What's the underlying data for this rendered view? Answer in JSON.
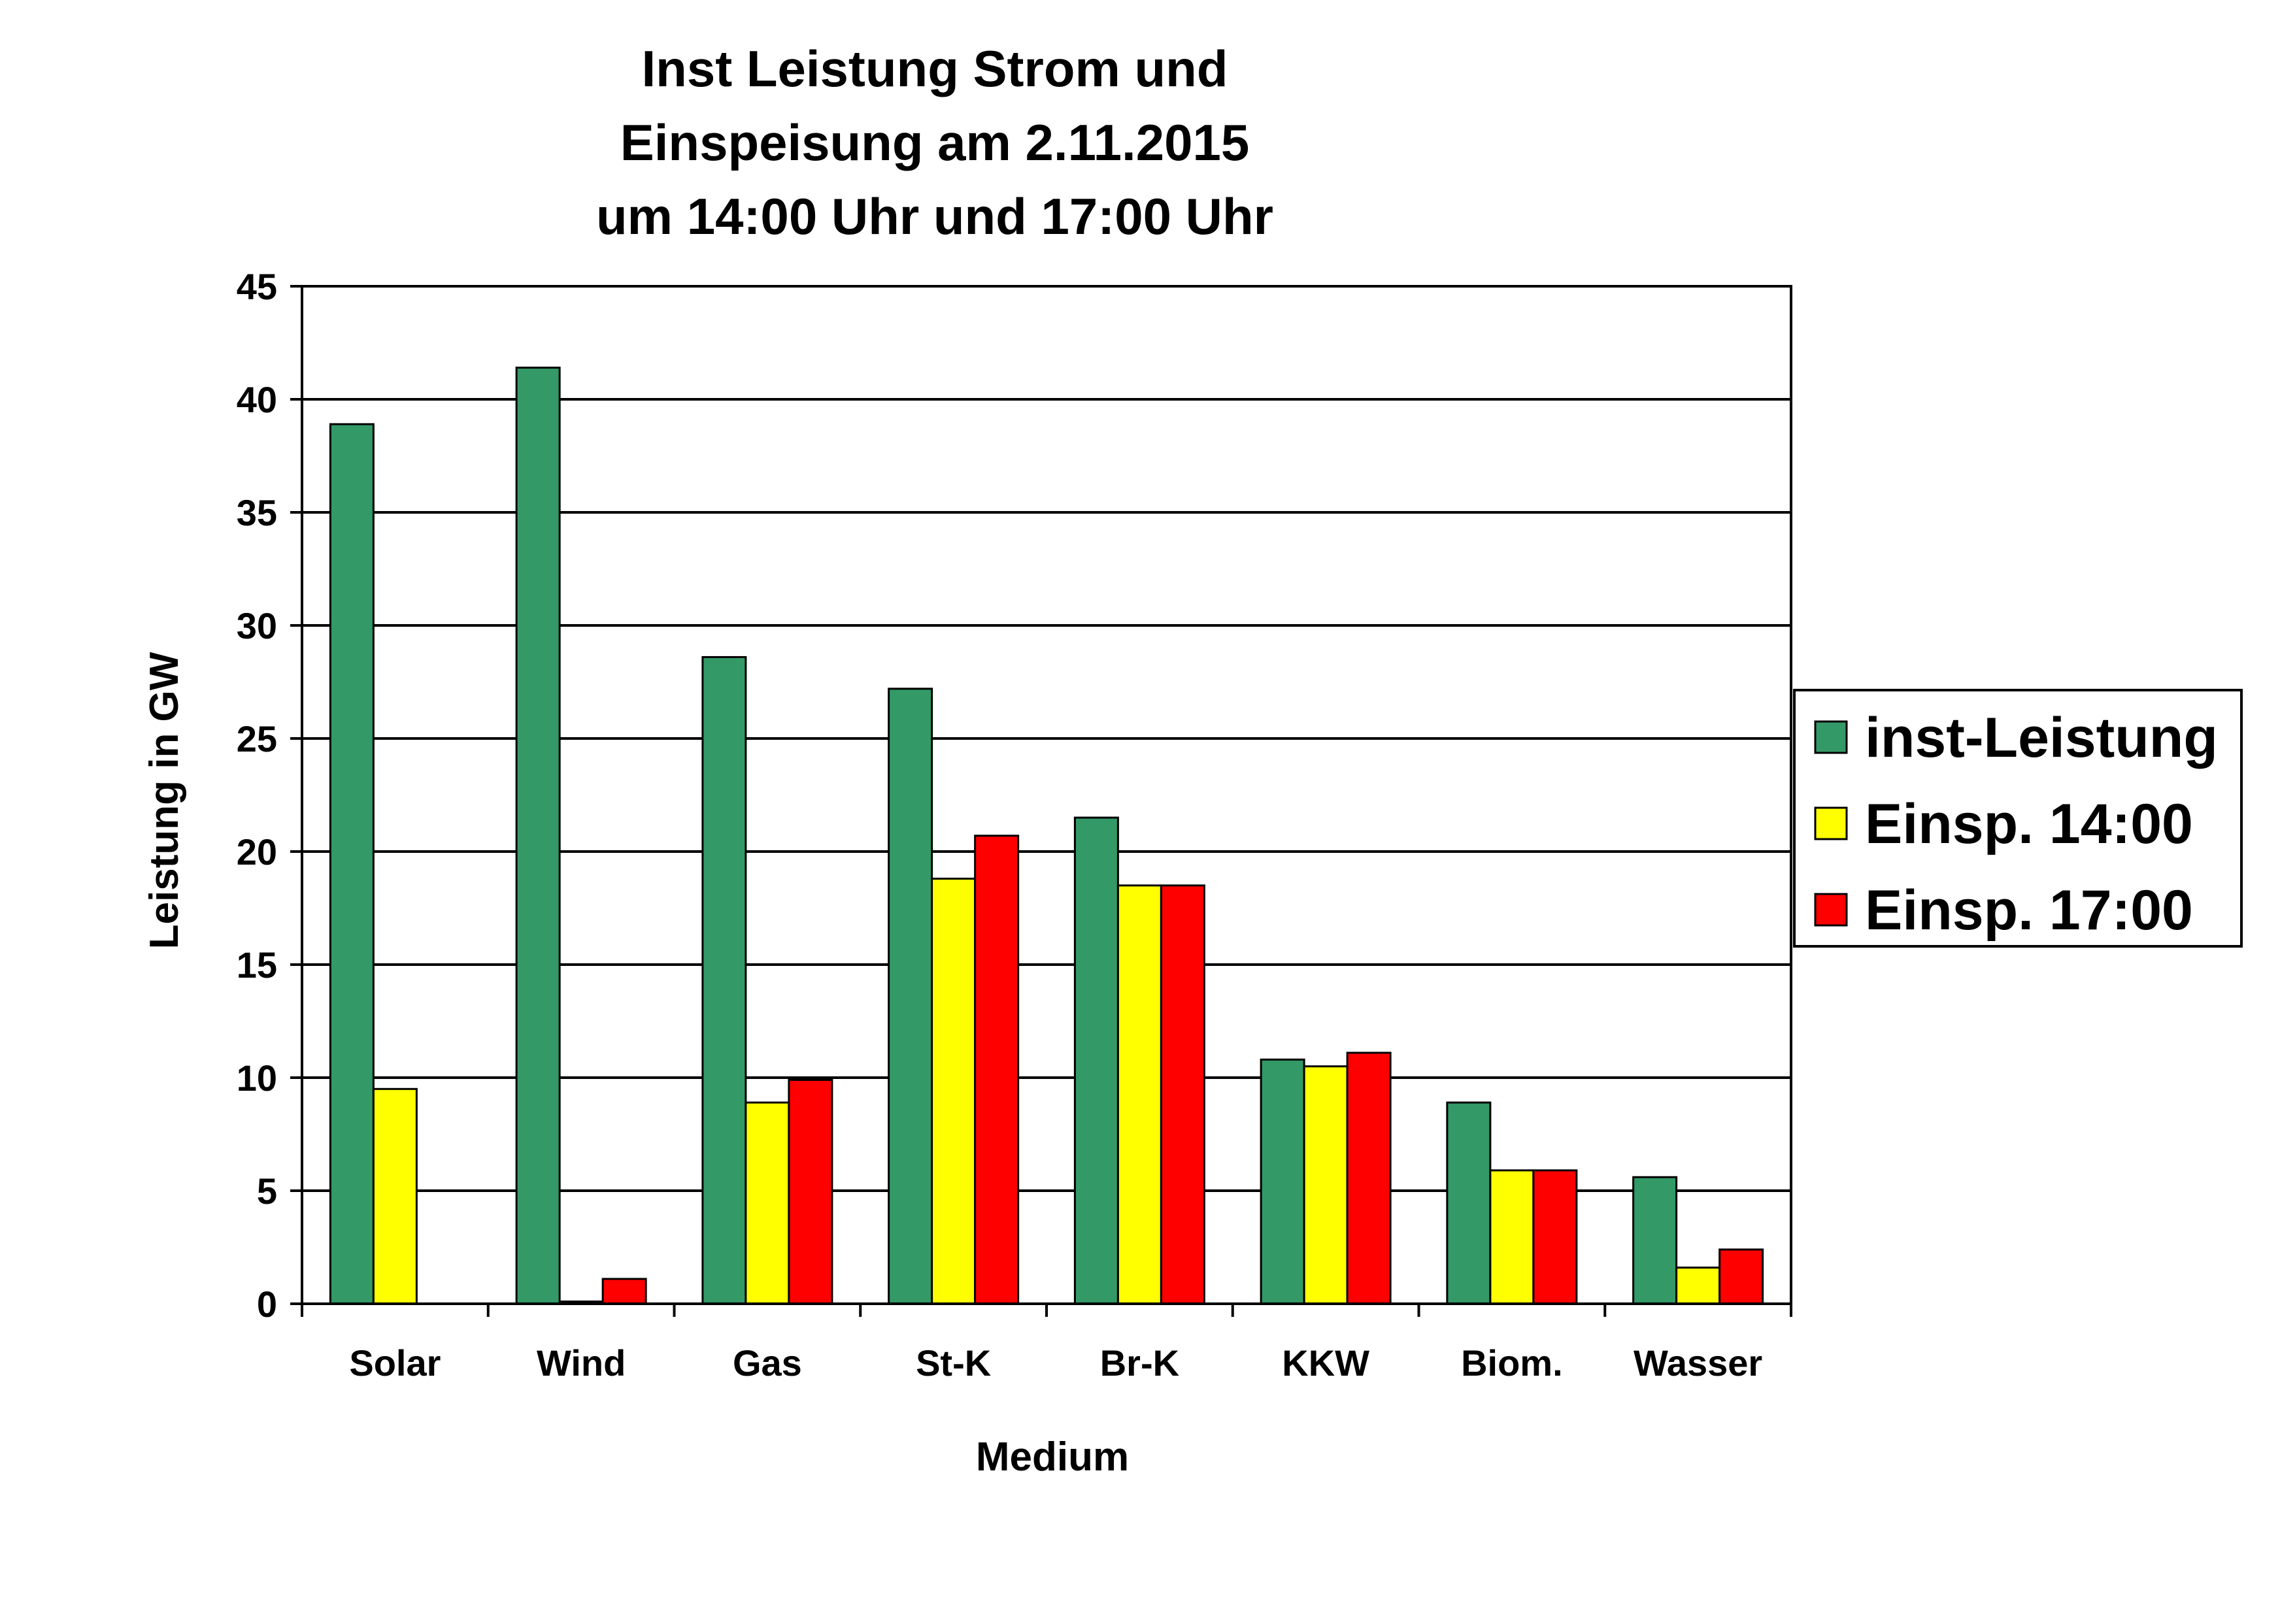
{
  "chart_data": {
    "type": "bar",
    "title_lines": [
      "Inst Leistung Strom und",
      "Einspeisung am 2.11.2015",
      "um 14:00 Uhr und 17:00 Uhr"
    ],
    "xlabel": "Medium",
    "ylabel": "Leistung in GW",
    "ylim": [
      0,
      45
    ],
    "yticks": [
      0,
      5,
      10,
      15,
      20,
      25,
      30,
      35,
      40,
      45
    ],
    "grid": true,
    "legend_position": "right",
    "categories": [
      "Solar",
      "Wind",
      "Gas",
      "St-K",
      "Br-K",
      "KKW",
      "Biom.",
      "Wasser"
    ],
    "series": [
      {
        "name": "inst-Leistung",
        "color": "#339966",
        "values": [
          38.9,
          41.4,
          28.6,
          27.2,
          21.5,
          10.8,
          8.9,
          5.6
        ]
      },
      {
        "name": "Einsp. 14:00",
        "color": "#ffff00",
        "values": [
          9.5,
          0.1,
          8.9,
          18.8,
          18.5,
          10.5,
          5.9,
          1.6
        ]
      },
      {
        "name": "Einsp. 17:00",
        "color": "#ff0000",
        "values": [
          0,
          1.1,
          9.9,
          20.7,
          18.5,
          11.1,
          5.9,
          2.4
        ]
      }
    ]
  }
}
